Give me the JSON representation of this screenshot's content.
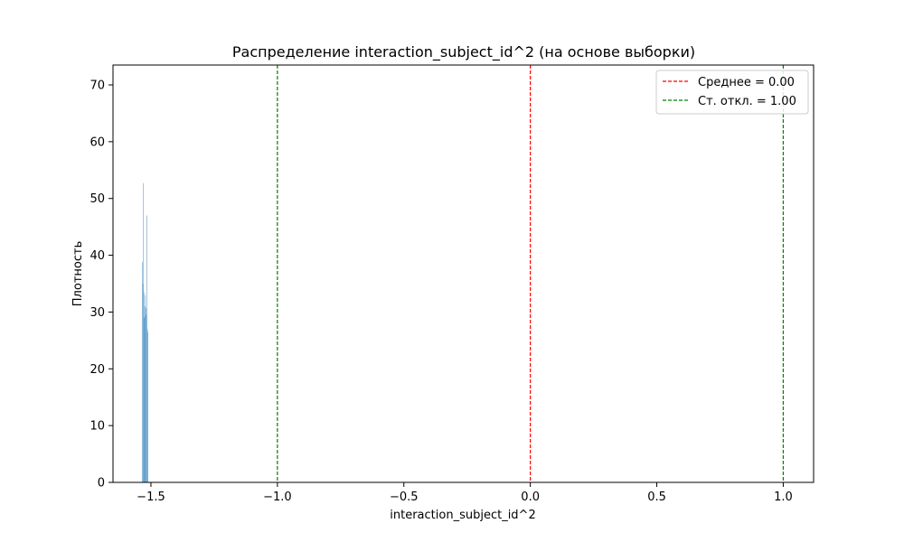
{
  "chart_data": {
    "type": "bar",
    "title": "Распределение interaction_subject_id^2 (на основе выборки)",
    "xlabel": "interaction_subject_id^2",
    "ylabel": "Плотность",
    "xlim": [
      -1.65,
      1.12
    ],
    "ylim": [
      0,
      73.5
    ],
    "xticks": [
      -1.5,
      -1.0,
      -0.5,
      0.0,
      0.5,
      1.0
    ],
    "xtick_labels": [
      "−1.5",
      "−1.0",
      "−0.5",
      "0.0",
      "0.5",
      "1.0"
    ],
    "yticks": [
      0,
      10,
      20,
      30,
      40,
      50,
      60,
      70
    ],
    "ytick_labels": [
      "0",
      "10",
      "20",
      "30",
      "40",
      "50",
      "60",
      "70"
    ],
    "grid": false,
    "legend_position": "top-right",
    "bar_color": "#4a90c4",
    "histogram": {
      "bin_edges": [
        -1.535,
        -1.533,
        -1.531,
        -1.529,
        -1.527,
        -1.525,
        -1.523,
        -1.521,
        -1.519,
        -1.517,
        -1.515,
        -1.513,
        -1.511
      ],
      "densities": [
        38.8,
        35.0,
        52.7,
        33.5,
        29.0,
        31.0,
        33.0,
        29.5,
        30.7,
        47.0,
        27.0,
        26.5
      ]
    },
    "reference_lines": [
      {
        "name": "Среднее = 0.00",
        "x": [
          0.0
        ],
        "color": "#ff0000",
        "style": "dashed"
      },
      {
        "name": "Ст. откл. = 1.00",
        "x": [
          -1.0,
          1.0
        ],
        "color": "#008000",
        "style": "dashed"
      }
    ]
  }
}
